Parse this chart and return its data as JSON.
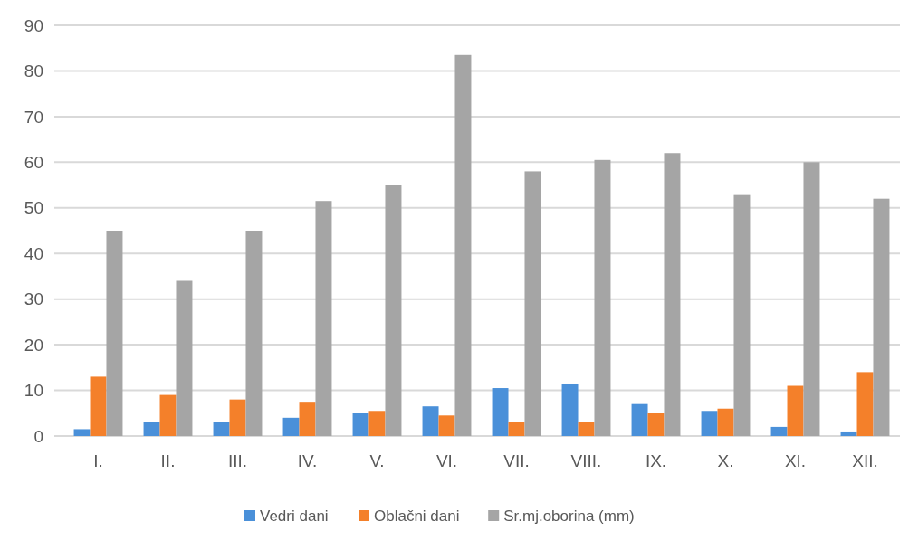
{
  "chart_data": {
    "type": "bar",
    "categories": [
      "I.",
      "II.",
      "III.",
      "IV.",
      "V.",
      "VI.",
      "VII.",
      "VIII.",
      "IX.",
      "X.",
      "XI.",
      "XII."
    ],
    "series": [
      {
        "name": "Vedri dani",
        "color": "#4a90d9",
        "values": [
          1.5,
          3,
          3,
          4,
          5,
          6.5,
          10.5,
          11.5,
          7,
          5.5,
          2,
          1
        ]
      },
      {
        "name": "Oblačni dani",
        "color": "#f4802a",
        "values": [
          13,
          9,
          8,
          7.5,
          5.5,
          4.5,
          3,
          3,
          5,
          6,
          11,
          14
        ]
      },
      {
        "name": "Sr.mj.oborina (mm)",
        "color": "#a5a5a5",
        "values": [
          45,
          34,
          45,
          51.5,
          55,
          83.5,
          58,
          60.5,
          62,
          53,
          60,
          52
        ]
      }
    ],
    "ylim": [
      0,
      90
    ],
    "yticks": [
      0,
      10,
      20,
      30,
      40,
      50,
      60,
      70,
      80,
      90
    ],
    "grid": "y",
    "legend": "bottom"
  }
}
